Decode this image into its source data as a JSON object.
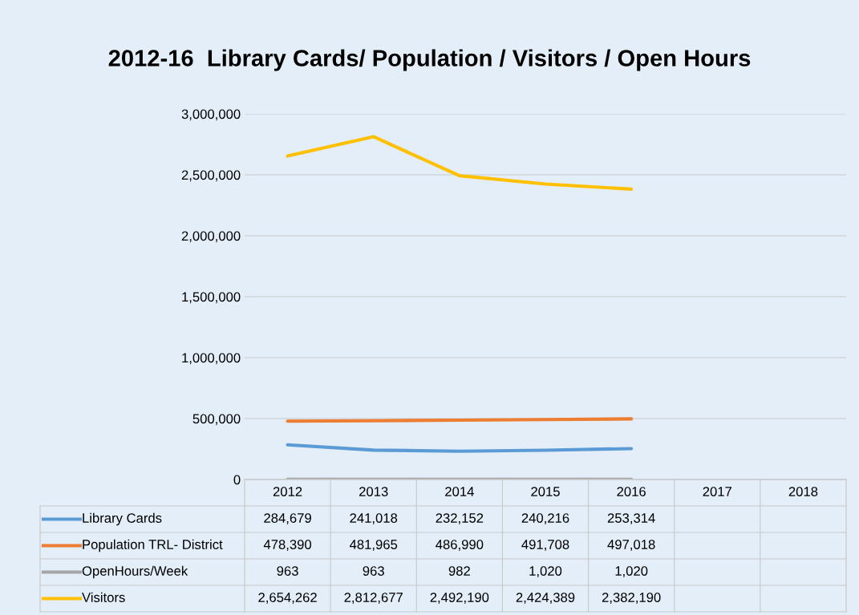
{
  "chart_data": {
    "type": "line",
    "title": "2012-16  Library Cards/ Population / Visitors / Open Hours",
    "categories": [
      "2012",
      "2013",
      "2014",
      "2015",
      "2016",
      "2017",
      "2018"
    ],
    "series": [
      {
        "name": "Library Cards",
        "color": "#5b9bd5",
        "values": [
          284679,
          241018,
          232152,
          240216,
          253314,
          null,
          null
        ],
        "value_labels": [
          "284,679",
          "241,018",
          "232,152",
          "240,216",
          "253,314",
          null,
          null
        ]
      },
      {
        "name": "Population TRL- District",
        "color": "#ed7d31",
        "values": [
          478390,
          481965,
          486990,
          491708,
          497018,
          null,
          null
        ],
        "value_labels": [
          "478,390",
          "481,965",
          "486,990",
          "491,708",
          "497,018",
          null,
          null
        ]
      },
      {
        "name": "OpenHours/Week",
        "color": "#a5a5a5",
        "values": [
          963,
          963,
          982,
          1020,
          1020,
          null,
          null
        ],
        "value_labels": [
          "963",
          "963",
          "982",
          "1,020",
          "1,020",
          null,
          null
        ]
      },
      {
        "name": "Visitors",
        "color": "#ffc000",
        "values": [
          2654262,
          2812677,
          2492190,
          2424389,
          2382190,
          null,
          null
        ],
        "value_labels": [
          "2,654,262",
          "2,812,677",
          "2,492,190",
          "2,424,389",
          "2,382,190",
          null,
          null
        ]
      }
    ],
    "ylim": [
      0,
      3000000
    ],
    "yticks": [
      {
        "value": 0,
        "label": "0"
      },
      {
        "value": 500000,
        "label": "500,000"
      },
      {
        "value": 1000000,
        "label": "1,000,000"
      },
      {
        "value": 1500000,
        "label": "1,500,000"
      },
      {
        "value": 2000000,
        "label": "2,000,000"
      },
      {
        "value": 2500000,
        "label": "2,500,000"
      },
      {
        "value": 3000000,
        "label": "3,000,000"
      }
    ],
    "grid": "y",
    "legend": "bottom left"
  }
}
